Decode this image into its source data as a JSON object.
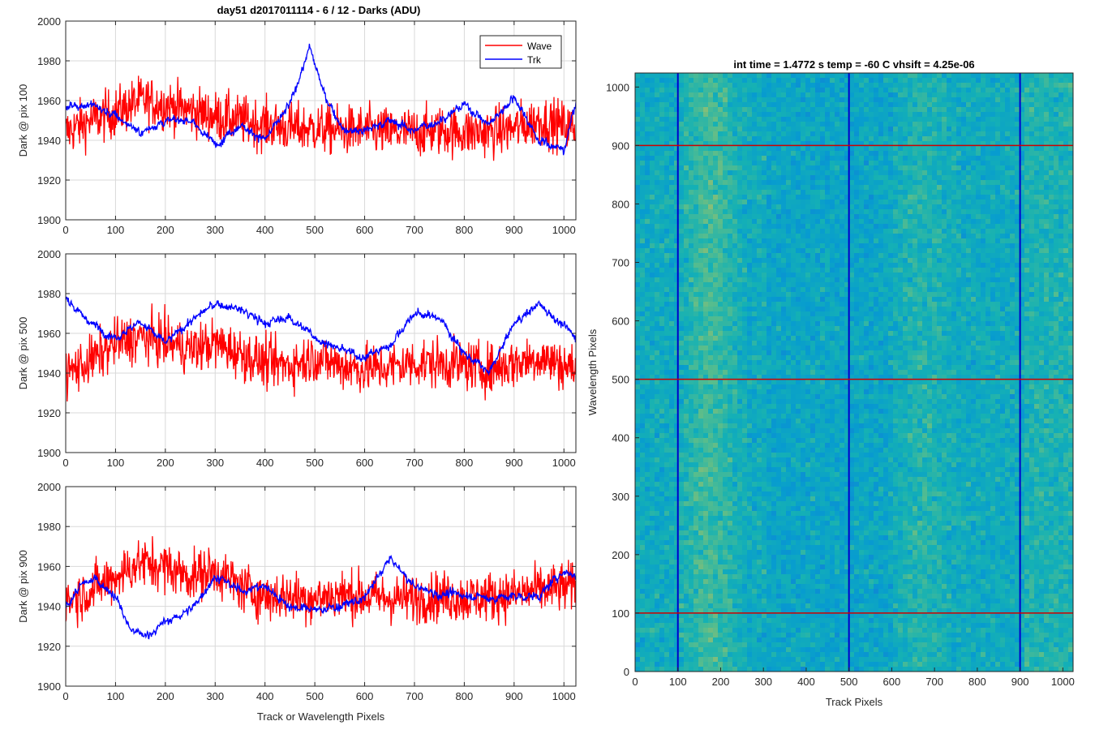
{
  "figure_title": "day51 d2017011114 - 6 / 12 - Darks (ADU)",
  "colors": {
    "wave": "#ff0000",
    "trk": "#0000ff",
    "grid": "#d9d9d9",
    "axis": "#262626"
  },
  "chart_data": [
    {
      "type": "line",
      "title": "day51 d2017011114 - 6 / 12 - Darks (ADU)",
      "xlabel": "",
      "ylabel": "Dark @ pix 100",
      "xlim": [
        0,
        1024
      ],
      "ylim": [
        1900,
        2000
      ],
      "xticks": [
        0,
        100,
        200,
        300,
        400,
        500,
        600,
        700,
        800,
        900,
        1000
      ],
      "yticks": [
        1900,
        1920,
        1940,
        1960,
        1980,
        2000
      ],
      "grid": true,
      "legend": {
        "placement": "top-right",
        "entries": [
          "Wave",
          "Trk"
        ]
      },
      "series": [
        {
          "name": "Wave",
          "color": "#ff0000",
          "x": [
            0,
            50,
            100,
            150,
            200,
            250,
            300,
            350,
            400,
            450,
            500,
            550,
            600,
            650,
            700,
            750,
            800,
            850,
            900,
            950,
            1024
          ],
          "values": [
            1944,
            1950,
            1954,
            1960,
            1958,
            1955,
            1952,
            1950,
            1948,
            1946,
            1946,
            1945,
            1945,
            1944,
            1944,
            1945,
            1944,
            1944,
            1946,
            1950,
            1946
          ]
        },
        {
          "name": "Trk",
          "color": "#0000ff",
          "x": [
            0,
            50,
            100,
            150,
            200,
            250,
            300,
            350,
            400,
            450,
            490,
            520,
            560,
            600,
            650,
            700,
            750,
            800,
            850,
            900,
            950,
            1000,
            1024
          ],
          "values": [
            1957,
            1958,
            1952,
            1944,
            1950,
            1950,
            1938,
            1948,
            1940,
            1958,
            1987,
            1962,
            1945,
            1945,
            1950,
            1945,
            1950,
            1958,
            1948,
            1962,
            1940,
            1935,
            1960
          ]
        }
      ]
    },
    {
      "type": "line",
      "title": "",
      "xlabel": "",
      "ylabel": "Dark @ pix 500",
      "xlim": [
        0,
        1024
      ],
      "ylim": [
        1900,
        2000
      ],
      "xticks": [
        0,
        100,
        200,
        300,
        400,
        500,
        600,
        700,
        800,
        900,
        1000
      ],
      "yticks": [
        1900,
        1920,
        1940,
        1960,
        1980,
        2000
      ],
      "grid": true,
      "series": [
        {
          "name": "Wave",
          "color": "#ff0000",
          "x": [
            0,
            50,
            100,
            150,
            200,
            250,
            300,
            350,
            400,
            450,
            500,
            550,
            600,
            650,
            700,
            750,
            800,
            850,
            900,
            950,
            1024
          ],
          "values": [
            1940,
            1946,
            1955,
            1958,
            1956,
            1952,
            1955,
            1950,
            1945,
            1944,
            1948,
            1944,
            1942,
            1943,
            1945,
            1945,
            1944,
            1942,
            1945,
            1948,
            1942
          ]
        },
        {
          "name": "Trk",
          "color": "#0000ff",
          "x": [
            0,
            50,
            100,
            150,
            200,
            250,
            300,
            350,
            400,
            450,
            500,
            550,
            600,
            650,
            700,
            750,
            800,
            850,
            900,
            950,
            1024
          ],
          "values": [
            1978,
            1965,
            1958,
            1966,
            1955,
            1966,
            1975,
            1972,
            1965,
            1968,
            1958,
            1952,
            1948,
            1954,
            1970,
            1968,
            1950,
            1940,
            1965,
            1975,
            1958
          ]
        }
      ]
    },
    {
      "type": "line",
      "title": "",
      "xlabel": "Track or Wavelength Pixels",
      "ylabel": "Dark @ pix 900",
      "xlim": [
        0,
        1024
      ],
      "ylim": [
        1900,
        2000
      ],
      "xticks": [
        0,
        100,
        200,
        300,
        400,
        500,
        600,
        700,
        800,
        900,
        1000
      ],
      "yticks": [
        1900,
        1920,
        1940,
        1960,
        1980,
        2000
      ],
      "grid": true,
      "series": [
        {
          "name": "Wave",
          "color": "#ff0000",
          "x": [
            0,
            50,
            100,
            150,
            200,
            250,
            300,
            350,
            400,
            450,
            500,
            550,
            600,
            650,
            700,
            750,
            800,
            850,
            900,
            950,
            1024
          ],
          "values": [
            1942,
            1948,
            1955,
            1962,
            1960,
            1955,
            1958,
            1950,
            1945,
            1945,
            1944,
            1946,
            1945,
            1944,
            1944,
            1945,
            1944,
            1945,
            1946,
            1948,
            1950
          ]
        },
        {
          "name": "Trk",
          "color": "#0000ff",
          "x": [
            0,
            30,
            60,
            100,
            130,
            160,
            200,
            250,
            300,
            350,
            400,
            450,
            500,
            550,
            600,
            650,
            700,
            750,
            800,
            850,
            900,
            950,
            1000,
            1024
          ],
          "values": [
            1940,
            1950,
            1954,
            1945,
            1928,
            1925,
            1932,
            1938,
            1955,
            1948,
            1950,
            1940,
            1938,
            1940,
            1944,
            1964,
            1950,
            1946,
            1946,
            1944,
            1945,
            1945,
            1958,
            1955
          ]
        }
      ]
    },
    {
      "type": "heatmap",
      "title": "int time = 1.4772 s    temp = -60 C    vhsift = 4.25e-06",
      "xlabel": "Track Pixels",
      "ylabel": "Wavelength Pixels",
      "xlim": [
        0,
        1024
      ],
      "ylim": [
        0,
        1024
      ],
      "xticks": [
        0,
        100,
        200,
        300,
        400,
        500,
        600,
        700,
        800,
        900,
        1000
      ],
      "yticks": [
        0,
        100,
        200,
        300,
        400,
        500,
        600,
        700,
        800,
        900,
        1000
      ],
      "colormap": "parula",
      "vertical_markers": {
        "x": [
          100,
          500,
          900
        ],
        "color": "#0000cc"
      },
      "horizontal_markers": {
        "y": [
          100,
          500,
          900
        ],
        "color": "#cc0000"
      }
    }
  ]
}
